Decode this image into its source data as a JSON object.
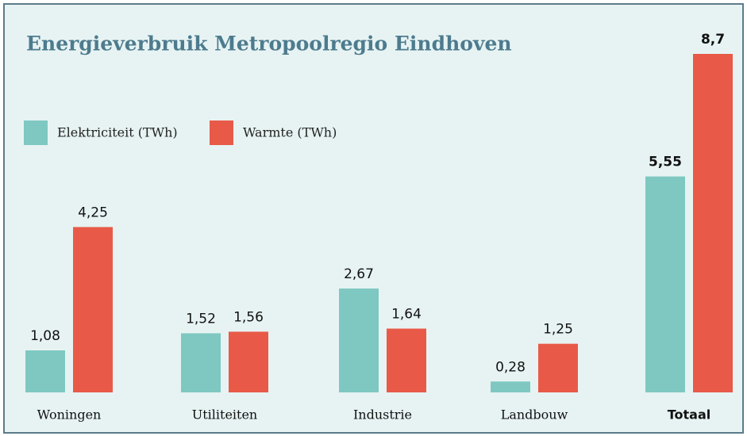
{
  "chart_data": {
    "type": "bar",
    "title": "Energieverbruik Metropoolregio Eindhoven",
    "categories": [
      "Woningen",
      "Utiliteiten",
      "Industrie",
      "Landbouw",
      "Totaal"
    ],
    "series": [
      {
        "name": "Elektriciteit (TWh)",
        "color": "#7ec8c1",
        "values": [
          1.08,
          1.52,
          2.67,
          0.28,
          5.55
        ],
        "value_labels": [
          "1,08",
          "1,52",
          "2,67",
          "0,28",
          "5,55"
        ]
      },
      {
        "name": "Warmte (TWh)",
        "color": "#e85a47",
        "values": [
          4.25,
          1.56,
          1.64,
          1.25,
          8.7
        ],
        "value_labels": [
          "4,25",
          "1,56",
          "1,64",
          "1,25",
          "8,7"
        ]
      }
    ],
    "legend": "top-left"
  }
}
